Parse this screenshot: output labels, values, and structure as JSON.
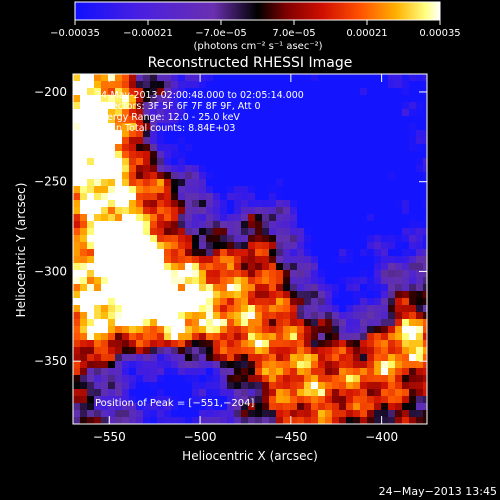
{
  "chart_data": {
    "type": "heatmap",
    "title": "Reconstructed RHESSI Image",
    "xlabel": "Heliocentric X (arcsec)",
    "ylabel": "Heliocentric Y (arcsec)",
    "xlim": [
      -570,
      -375
    ],
    "ylim": [
      -385,
      -190
    ],
    "x_ticks": [
      -550,
      -500,
      -450,
      -400
    ],
    "x_tick_labels": [
      "−550",
      "−500",
      "−450",
      "−400"
    ],
    "y_ticks": [
      -200,
      -250,
      -300,
      -350
    ],
    "y_tick_labels": [
      "−200",
      "−250",
      "−300",
      "−350"
    ],
    "colorbar": {
      "min": -0.00035,
      "max": 0.00035,
      "ticks": [
        -0.00035,
        -0.00021,
        -7e-05,
        7e-05,
        0.00021,
        0.00035
      ],
      "tick_labels": [
        "−0.00035",
        "−0.00021",
        "−7.0e−05",
        "7.0e−05",
        "0.00021",
        "0.00035"
      ],
      "units": "(photons cm⁻² s⁻¹ asec⁻²)",
      "colors": [
        "#1010ff",
        "#4a20e0",
        "#6a2fb0",
        "#000000",
        "#800000",
        "#d01000",
        "#ff5000",
        "#ffb000",
        "#ffff80",
        "#ffffff"
      ]
    },
    "annotations": [
      "24-May-2013 02:00:48.000 to 02:05:14.000",
      "Detectors: 3F 5F 6F 7F 8F 9F, Att 0",
      "Energy Range: 12.0 - 25.0 keV",
      "Clean     Total counts: 8.84E+03"
    ],
    "peak_label": "Position of Peak = [−551,−204]",
    "peak": [
      -551,
      -204
    ]
  },
  "footer": {
    "timestamp": "24−May−2013 13:45"
  }
}
